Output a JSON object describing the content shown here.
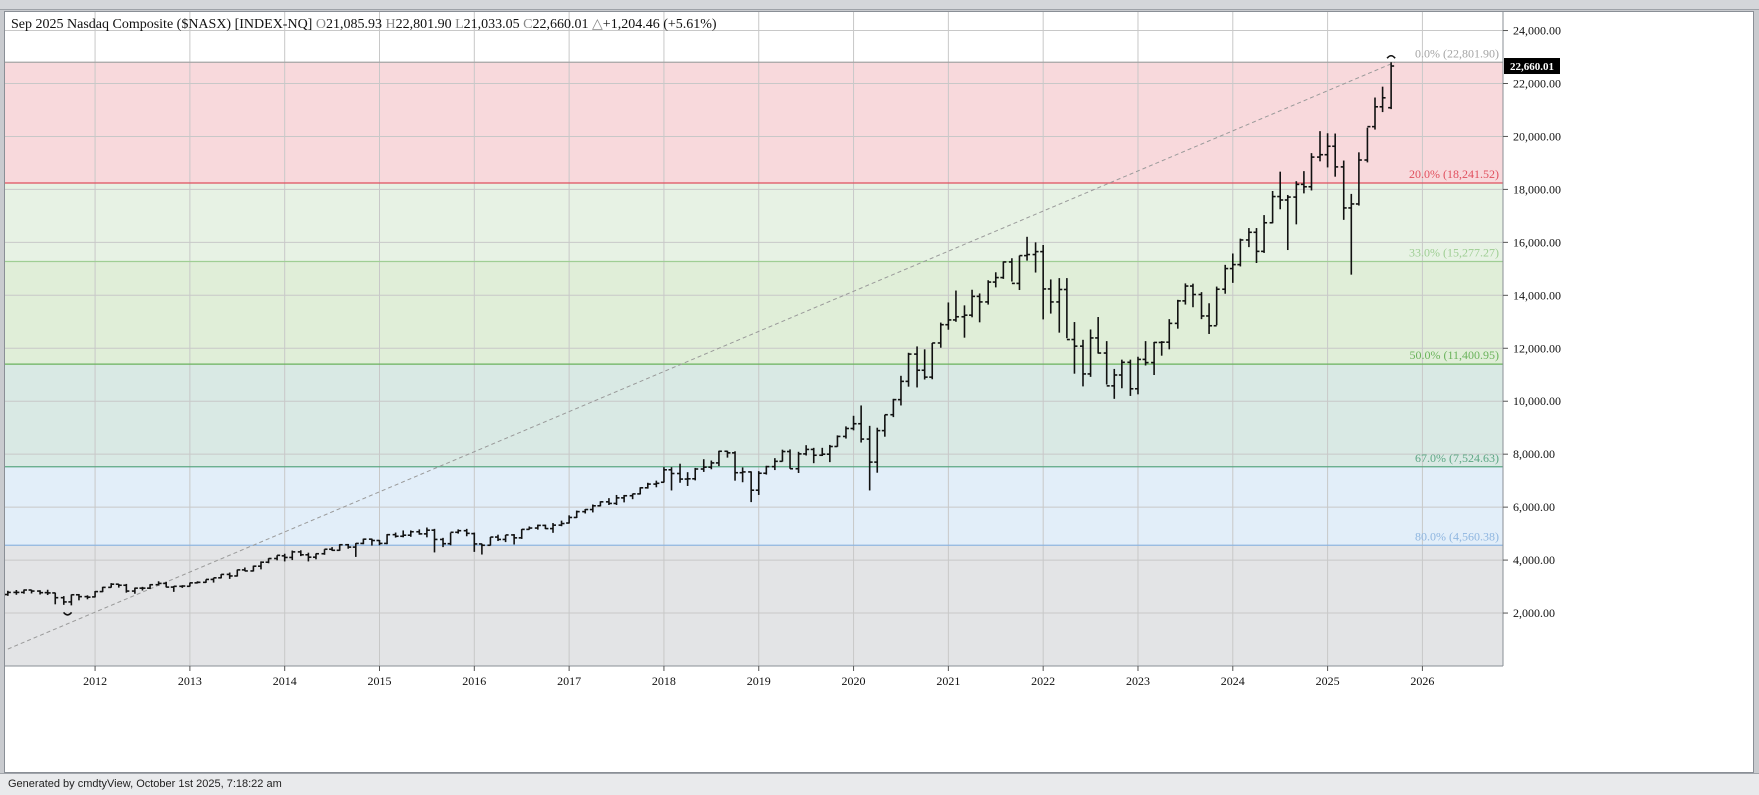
{
  "header": {
    "title": "Sep 2025 Nasdaq Composite ($NASX) [INDEX-NQ]",
    "open_label": "O",
    "open": "21,085.93",
    "high_label": "H",
    "high": "22,801.90",
    "low_label": "L",
    "low": "21,033.05",
    "close_label": "C",
    "close": "22,660.01",
    "change_label": "△",
    "change": "+1,204.46 (+5.61%)"
  },
  "footer": {
    "text": "Generated by cmdtyView, October 1st 2025, 7:18:22 am"
  },
  "current_price_label": "22,660.01",
  "colors": {
    "zone_0_20": "#f8d9dc",
    "zone_20_33": "#e7f2e4",
    "zone_33_50": "#e0eed8",
    "zone_50_67": "#d9e9e4",
    "zone_67_80": "#e2eef9",
    "zone_below": "#e3e4e6",
    "price_tag": "#000000",
    "bars": "#111111"
  },
  "chart_data": {
    "type": "ohlc",
    "interval": "monthly",
    "x_ticks": [
      "2012",
      "2013",
      "2014",
      "2015",
      "2016",
      "2017",
      "2018",
      "2019",
      "2020",
      "2021",
      "2022",
      "2023",
      "2024",
      "2025",
      "2026"
    ],
    "y_ticks": [
      "2,000.00",
      "4,000.00",
      "6,000.00",
      "8,000.00",
      "10,000.00",
      "12,000.00",
      "14,000.00",
      "16,000.00",
      "18,000.00",
      "20,000.00",
      "22,000.00",
      "24,000.00"
    ],
    "ylim": [
      0,
      24700
    ],
    "fib_levels": [
      {
        "label": "0.0% (22,801.90)",
        "value": 22801.9,
        "color": "#a5a5a5"
      },
      {
        "label": "20.0% (18,241.52)",
        "value": 18241.52,
        "color": "#e0505e"
      },
      {
        "label": "33.0% (15,277.27)",
        "value": 15277.27,
        "color": "#9fce94"
      },
      {
        "label": "50.0% (11,400.95)",
        "value": 11400.95,
        "color": "#6ab35c"
      },
      {
        "label": "67.0% (7,524.63)",
        "value": 7524.63,
        "color": "#5da784"
      },
      {
        "label": "80.0% (4,560.38)",
        "value": 4560.38,
        "color": "#8fb6e0"
      }
    ],
    "trendline": {
      "from": [
        2011.08,
        640
      ],
      "to": [
        2025.71,
        22802
      ]
    },
    "anchor_points": [
      {
        "date": 2011.71,
        "value": 2100
      },
      {
        "date": 2025.67,
        "value": 22802
      }
    ],
    "bars": [
      [
        2011.08,
        2700,
        2840,
        2650,
        2780
      ],
      [
        2011.17,
        2780,
        2870,
        2690,
        2780
      ],
      [
        2011.25,
        2780,
        2890,
        2730,
        2870
      ],
      [
        2011.33,
        2870,
        2880,
        2740,
        2830
      ],
      [
        2011.42,
        2830,
        2860,
        2700,
        2770
      ],
      [
        2011.5,
        2770,
        2880,
        2680,
        2760
      ],
      [
        2011.58,
        2760,
        2770,
        2330,
        2580
      ],
      [
        2011.67,
        2580,
        2640,
        2310,
        2420
      ],
      [
        2011.75,
        2420,
        2700,
        2290,
        2690
      ],
      [
        2011.83,
        2690,
        2720,
        2480,
        2620
      ],
      [
        2011.92,
        2620,
        2670,
        2520,
        2600
      ],
      [
        2012.0,
        2610,
        2830,
        2590,
        2810
      ],
      [
        2012.08,
        2810,
        2990,
        2790,
        2970
      ],
      [
        2012.17,
        2970,
        3130,
        2960,
        3090
      ],
      [
        2012.25,
        3090,
        3100,
        2960,
        3050
      ],
      [
        2012.33,
        3050,
        3100,
        2770,
        2830
      ],
      [
        2012.42,
        2830,
        2960,
        2730,
        2940
      ],
      [
        2012.5,
        2940,
        2990,
        2850,
        2940
      ],
      [
        2012.58,
        2940,
        3090,
        2910,
        3070
      ],
      [
        2012.67,
        3070,
        3200,
        3040,
        3120
      ],
      [
        2012.75,
        3120,
        3180,
        2970,
        2980
      ],
      [
        2012.83,
        2980,
        3020,
        2800,
        3010
      ],
      [
        2012.92,
        3010,
        3050,
        2950,
        3020
      ],
      [
        2013.0,
        3010,
        3150,
        3000,
        3140
      ],
      [
        2013.08,
        3140,
        3200,
        3120,
        3160
      ],
      [
        2013.17,
        3160,
        3270,
        3140,
        3270
      ],
      [
        2013.25,
        3270,
        3330,
        3150,
        3330
      ],
      [
        2013.33,
        3330,
        3470,
        3310,
        3460
      ],
      [
        2013.42,
        3460,
        3530,
        3290,
        3400
      ],
      [
        2013.5,
        3400,
        3640,
        3380,
        3630
      ],
      [
        2013.58,
        3630,
        3720,
        3580,
        3590
      ],
      [
        2013.67,
        3590,
        3790,
        3570,
        3770
      ],
      [
        2013.75,
        3770,
        3950,
        3650,
        3920
      ],
      [
        2013.83,
        3920,
        4070,
        3880,
        4060
      ],
      [
        2013.92,
        4060,
        4180,
        3990,
        4180
      ],
      [
        2014.0,
        4160,
        4240,
        3950,
        4100
      ],
      [
        2014.08,
        4100,
        4360,
        4000,
        4310
      ],
      [
        2014.17,
        4310,
        4370,
        4150,
        4200
      ],
      [
        2014.25,
        4200,
        4280,
        3950,
        4110
      ],
      [
        2014.33,
        4110,
        4250,
        4030,
        4240
      ],
      [
        2014.42,
        4240,
        4410,
        4200,
        4410
      ],
      [
        2014.5,
        4410,
        4490,
        4350,
        4370
      ],
      [
        2014.58,
        4370,
        4600,
        4350,
        4580
      ],
      [
        2014.67,
        4580,
        4610,
        4430,
        4490
      ],
      [
        2014.75,
        4490,
        4640,
        4120,
        4630
      ],
      [
        2014.83,
        4630,
        4810,
        4600,
        4790
      ],
      [
        2014.92,
        4790,
        4810,
        4550,
        4740
      ],
      [
        2015.0,
        4740,
        4760,
        4560,
        4630
      ],
      [
        2015.08,
        4630,
        4980,
        4600,
        4960
      ],
      [
        2015.17,
        4960,
        5040,
        4850,
        4900
      ],
      [
        2015.25,
        4900,
        5120,
        4860,
        4940
      ],
      [
        2015.33,
        4940,
        5120,
        4880,
        5070
      ],
      [
        2015.42,
        5070,
        5160,
        4960,
        4990
      ],
      [
        2015.5,
        4990,
        5230,
        4860,
        5130
      ],
      [
        2015.58,
        5130,
        5180,
        4290,
        4780
      ],
      [
        2015.67,
        4780,
        4840,
        4490,
        4620
      ],
      [
        2015.75,
        4620,
        5040,
        4560,
        5050
      ],
      [
        2015.83,
        5050,
        5160,
        5000,
        5110
      ],
      [
        2015.92,
        5110,
        5180,
        4900,
        5010
      ],
      [
        2016.0,
        5000,
        5040,
        4310,
        4610
      ],
      [
        2016.08,
        4610,
        4620,
        4210,
        4560
      ],
      [
        2016.17,
        4560,
        4870,
        4550,
        4870
      ],
      [
        2016.25,
        4870,
        4960,
        4720,
        4780
      ],
      [
        2016.33,
        4780,
        4950,
        4680,
        4950
      ],
      [
        2016.42,
        4950,
        4980,
        4590,
        4840
      ],
      [
        2016.5,
        4840,
        5170,
        4800,
        5160
      ],
      [
        2016.58,
        5160,
        5270,
        5150,
        5210
      ],
      [
        2016.67,
        5210,
        5340,
        5150,
        5310
      ],
      [
        2016.75,
        5310,
        5340,
        5170,
        5190
      ],
      [
        2016.83,
        5190,
        5400,
        5030,
        5320
      ],
      [
        2016.92,
        5320,
        5490,
        5280,
        5380
      ],
      [
        2017.0,
        5400,
        5690,
        5380,
        5610
      ],
      [
        2017.08,
        5610,
        5870,
        5590,
        5830
      ],
      [
        2017.17,
        5830,
        5930,
        5760,
        5910
      ],
      [
        2017.25,
        5910,
        6100,
        5800,
        6050
      ],
      [
        2017.33,
        6050,
        6220,
        6030,
        6200
      ],
      [
        2017.42,
        6200,
        6340,
        6080,
        6140
      ],
      [
        2017.5,
        6140,
        6460,
        6080,
        6350
      ],
      [
        2017.58,
        6350,
        6460,
        6180,
        6430
      ],
      [
        2017.67,
        6430,
        6510,
        6300,
        6500
      ],
      [
        2017.75,
        6500,
        6750,
        6480,
        6730
      ],
      [
        2017.83,
        6730,
        6920,
        6700,
        6870
      ],
      [
        2017.92,
        6870,
        7000,
        6750,
        6900
      ],
      [
        2018.0,
        6940,
        7510,
        6930,
        7410
      ],
      [
        2018.08,
        7410,
        7510,
        6630,
        7270
      ],
      [
        2018.17,
        7270,
        7640,
        6920,
        7060
      ],
      [
        2018.25,
        7060,
        7320,
        6800,
        7070
      ],
      [
        2018.33,
        7070,
        7480,
        7010,
        7440
      ],
      [
        2018.42,
        7440,
        7810,
        7330,
        7510
      ],
      [
        2018.5,
        7510,
        7760,
        7430,
        7670
      ],
      [
        2018.58,
        7670,
        8130,
        7550,
        8110
      ],
      [
        2018.67,
        8110,
        8130,
        7870,
        8050
      ],
      [
        2018.75,
        8050,
        8110,
        7000,
        7300
      ],
      [
        2018.83,
        7300,
        7500,
        6940,
        7330
      ],
      [
        2018.92,
        7330,
        7350,
        6190,
        6640
      ],
      [
        2019.0,
        6640,
        7360,
        6460,
        7280
      ],
      [
        2019.08,
        7280,
        7560,
        7230,
        7530
      ],
      [
        2019.17,
        7530,
        7850,
        7400,
        7730
      ],
      [
        2019.25,
        7730,
        8170,
        7720,
        8100
      ],
      [
        2019.33,
        8100,
        8180,
        7450,
        7450
      ],
      [
        2019.42,
        7450,
        8090,
        7290,
        8010
      ],
      [
        2019.5,
        8010,
        8340,
        7950,
        8180
      ],
      [
        2019.58,
        8180,
        8240,
        7660,
        7960
      ],
      [
        2019.67,
        7960,
        8240,
        7930,
        8000
      ],
      [
        2019.75,
        8000,
        8350,
        7700,
        8290
      ],
      [
        2019.83,
        8290,
        8710,
        8280,
        8670
      ],
      [
        2019.92,
        8670,
        9050,
        8590,
        8970
      ],
      [
        2020.0,
        8970,
        9450,
        8900,
        9150
      ],
      [
        2020.08,
        9150,
        9840,
        8440,
        8570
      ],
      [
        2020.17,
        8570,
        9070,
        6630,
        7700
      ],
      [
        2020.25,
        7700,
        9000,
        7300,
        8890
      ],
      [
        2020.33,
        8890,
        9490,
        8660,
        9490
      ],
      [
        2020.42,
        9490,
        10090,
        9400,
        10060
      ],
      [
        2020.5,
        10060,
        10960,
        9840,
        10750
      ],
      [
        2020.58,
        10750,
        11830,
        10550,
        11780
      ],
      [
        2020.67,
        11780,
        12070,
        10520,
        11170
      ],
      [
        2020.75,
        11170,
        11960,
        10820,
        10910
      ],
      [
        2020.83,
        10910,
        12200,
        10830,
        12200
      ],
      [
        2020.92,
        12200,
        12970,
        12020,
        12890
      ],
      [
        2021.0,
        12890,
        13730,
        12700,
        13070
      ],
      [
        2021.08,
        13070,
        14180,
        13000,
        13190
      ],
      [
        2021.17,
        13190,
        13620,
        12400,
        13250
      ],
      [
        2021.25,
        13250,
        14210,
        13170,
        13960
      ],
      [
        2021.33,
        13960,
        14070,
        12980,
        13750
      ],
      [
        2021.42,
        13750,
        14570,
        13650,
        14500
      ],
      [
        2021.5,
        14500,
        14870,
        14300,
        14670
      ],
      [
        2021.58,
        14670,
        15280,
        14620,
        15260
      ],
      [
        2021.67,
        15260,
        15400,
        14520,
        14450
      ],
      [
        2021.75,
        14450,
        15500,
        14200,
        15500
      ],
      [
        2021.83,
        15500,
        16210,
        15310,
        15540
      ],
      [
        2021.92,
        15540,
        16000,
        14860,
        15650
      ],
      [
        2022.0,
        15650,
        15900,
        13090,
        14240
      ],
      [
        2022.08,
        14240,
        14600,
        13310,
        13750
      ],
      [
        2022.17,
        13750,
        14650,
        12590,
        14220
      ],
      [
        2022.25,
        14220,
        14650,
        12380,
        12330
      ],
      [
        2022.33,
        12330,
        12990,
        11040,
        12080
      ],
      [
        2022.42,
        12080,
        12320,
        10560,
        11030
      ],
      [
        2022.5,
        11030,
        12710,
        10920,
        12390
      ],
      [
        2022.58,
        12390,
        13180,
        11800,
        11820
      ],
      [
        2022.67,
        11820,
        12270,
        10630,
        10580
      ],
      [
        2022.75,
        10580,
        11220,
        10090,
        10990
      ],
      [
        2022.83,
        10990,
        11570,
        10490,
        11470
      ],
      [
        2022.92,
        11470,
        11570,
        10200,
        10470
      ],
      [
        2023.0,
        10470,
        11680,
        10260,
        11580
      ],
      [
        2023.08,
        11580,
        12270,
        11350,
        11460
      ],
      [
        2023.17,
        11460,
        12240,
        10990,
        12220
      ],
      [
        2023.25,
        12220,
        12270,
        11720,
        12230
      ],
      [
        2023.33,
        12230,
        13100,
        11960,
        12940
      ],
      [
        2023.42,
        12940,
        13830,
        12740,
        13790
      ],
      [
        2023.5,
        13790,
        14450,
        13650,
        14350
      ],
      [
        2023.58,
        14350,
        14440,
        13550,
        14030
      ],
      [
        2023.67,
        14030,
        14120,
        13100,
        13220
      ],
      [
        2023.75,
        13220,
        13700,
        12540,
        12850
      ],
      [
        2023.83,
        12850,
        14330,
        12870,
        14230
      ],
      [
        2023.92,
        14230,
        15150,
        14060,
        15010
      ],
      [
        2024.0,
        15010,
        15580,
        14470,
        15160
      ],
      [
        2024.08,
        15160,
        16140,
        15090,
        16090
      ],
      [
        2024.17,
        16090,
        16540,
        15820,
        16380
      ],
      [
        2024.25,
        16380,
        16540,
        15220,
        15660
      ],
      [
        2024.33,
        15660,
        17030,
        15600,
        16740
      ],
      [
        2024.42,
        16740,
        17940,
        16720,
        17730
      ],
      [
        2024.5,
        17730,
        18670,
        17250,
        17600
      ],
      [
        2024.58,
        17600,
        17790,
        15710,
        17710
      ],
      [
        2024.67,
        17710,
        18310,
        16680,
        18190
      ],
      [
        2024.75,
        18190,
        18690,
        17850,
        18100
      ],
      [
        2024.83,
        18100,
        19370,
        17960,
        19220
      ],
      [
        2024.92,
        19220,
        20200,
        19060,
        19310
      ],
      [
        2025.0,
        19310,
        20120,
        18830,
        19630
      ],
      [
        2025.08,
        19630,
        20110,
        18480,
        18850
      ],
      [
        2025.17,
        18850,
        19090,
        16850,
        17300
      ],
      [
        2025.25,
        17300,
        17830,
        14780,
        17450
      ],
      [
        2025.33,
        17450,
        19400,
        17390,
        19110
      ],
      [
        2025.42,
        19110,
        20330,
        19020,
        20370
      ],
      [
        2025.5,
        20370,
        21470,
        20260,
        21120
      ],
      [
        2025.58,
        21120,
        21880,
        20920,
        21460
      ],
      [
        2025.67,
        21086,
        22802,
        21033,
        22660
      ]
    ]
  }
}
